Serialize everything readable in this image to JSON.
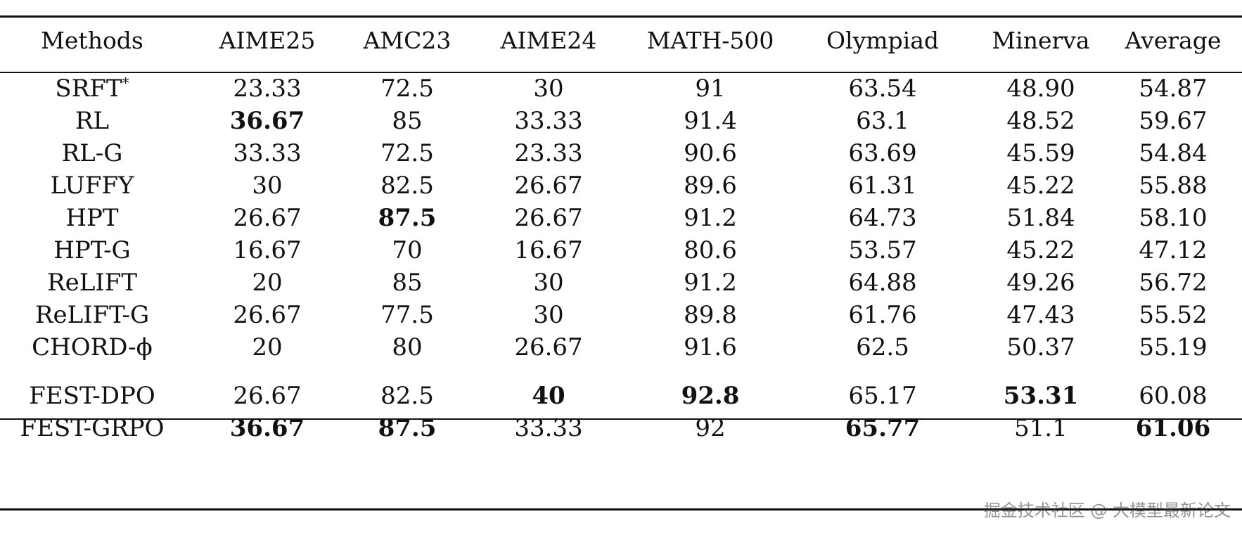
{
  "table": {
    "headers": [
      "Methods",
      "AIME25",
      "AMC23",
      "AIME24",
      "MATH-500",
      "Olympiad",
      "Minerva",
      "Average"
    ],
    "rows": [
      {
        "method": "SRFT",
        "method_sup": "*",
        "cells": [
          "23.33",
          "72.5",
          "30",
          "91",
          "63.54",
          "48.90",
          "54.87"
        ],
        "bold": [
          false,
          false,
          false,
          false,
          false,
          false,
          false
        ]
      },
      {
        "method": "RL",
        "method_sup": "",
        "cells": [
          "36.67",
          "85",
          "33.33",
          "91.4",
          "63.1",
          "48.52",
          "59.67"
        ],
        "bold": [
          true,
          false,
          false,
          false,
          false,
          false,
          false
        ]
      },
      {
        "method": "RL-G",
        "method_sup": "",
        "cells": [
          "33.33",
          "72.5",
          "23.33",
          "90.6",
          "63.69",
          "45.59",
          "54.84"
        ],
        "bold": [
          false,
          false,
          false,
          false,
          false,
          false,
          false
        ]
      },
      {
        "method": "LUFFY",
        "method_sup": "",
        "cells": [
          "30",
          "82.5",
          "26.67",
          "89.6",
          "61.31",
          "45.22",
          "55.88"
        ],
        "bold": [
          false,
          false,
          false,
          false,
          false,
          false,
          false
        ]
      },
      {
        "method": "HPT",
        "method_sup": "",
        "cells": [
          "26.67",
          "87.5",
          "26.67",
          "91.2",
          "64.73",
          "51.84",
          "58.10"
        ],
        "bold": [
          false,
          true,
          false,
          false,
          false,
          false,
          false
        ]
      },
      {
        "method": "HPT-G",
        "method_sup": "",
        "cells": [
          "16.67",
          "70",
          "16.67",
          "80.6",
          "53.57",
          "45.22",
          "47.12"
        ],
        "bold": [
          false,
          false,
          false,
          false,
          false,
          false,
          false
        ]
      },
      {
        "method": "ReLIFT",
        "method_sup": "",
        "cells": [
          "20",
          "85",
          "30",
          "91.2",
          "64.88",
          "49.26",
          "56.72"
        ],
        "bold": [
          false,
          false,
          false,
          false,
          false,
          false,
          false
        ]
      },
      {
        "method": "ReLIFT-G",
        "method_sup": "",
        "cells": [
          "26.67",
          "77.5",
          "30",
          "89.8",
          "61.76",
          "47.43",
          "55.52"
        ],
        "bold": [
          false,
          false,
          false,
          false,
          false,
          false,
          false
        ]
      },
      {
        "method": "CHORD-ϕ",
        "method_sup": "",
        "cells": [
          "20",
          "80",
          "26.67",
          "91.6",
          "62.5",
          "50.37",
          "55.19"
        ],
        "bold": [
          false,
          false,
          false,
          false,
          false,
          false,
          false
        ]
      }
    ],
    "ours_rows": [
      {
        "method": "FEST-DPO",
        "method_sup": "",
        "cells": [
          "26.67",
          "82.5",
          "40",
          "92.8",
          "65.17",
          "53.31",
          "60.08"
        ],
        "bold": [
          false,
          false,
          true,
          true,
          false,
          true,
          false
        ]
      },
      {
        "method": "FEST-GRPO",
        "method_sup": "",
        "cells": [
          "36.67",
          "87.5",
          "33.33",
          "92",
          "65.77",
          "51.1",
          "61.06"
        ],
        "bold": [
          true,
          true,
          false,
          false,
          true,
          false,
          true
        ]
      }
    ]
  },
  "watermark": "掘金技术社区 @ 大模型最新论文"
}
